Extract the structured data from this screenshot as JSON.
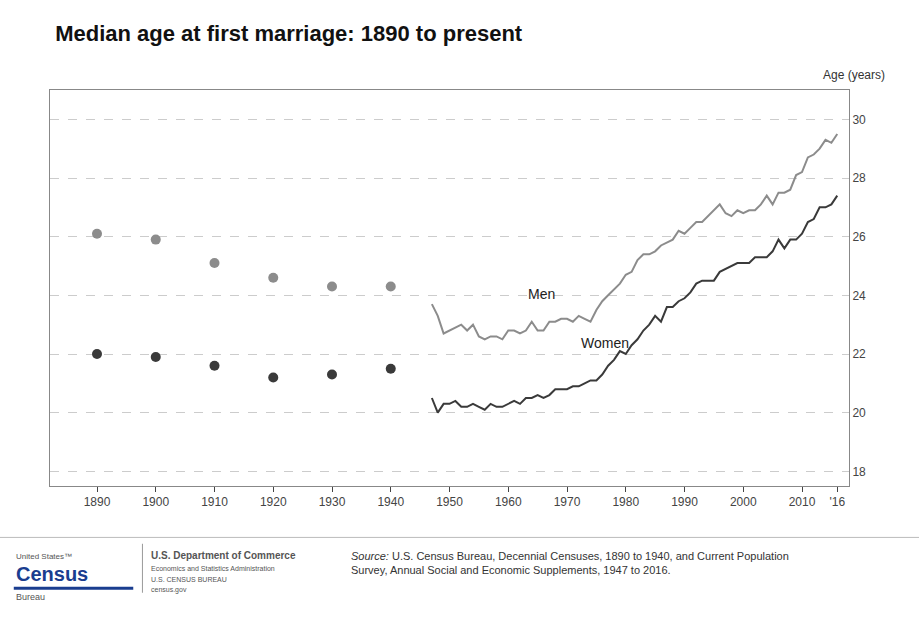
{
  "chart_data": {
    "type": "line",
    "title": "Median age at first marriage: 1890 to present",
    "ylabel": "Age (years)",
    "series": [
      {
        "name": "Men",
        "type": "scatter",
        "color": "#8c8c8c",
        "x": [
          1890,
          1900,
          1910,
          1920,
          1930,
          1940
        ],
        "values": [
          26.1,
          25.9,
          25.1,
          24.6,
          24.3,
          24.3
        ]
      },
      {
        "name": "Women",
        "type": "scatter",
        "color": "#3a3a3a",
        "x": [
          1890,
          1900,
          1910,
          1920,
          1930,
          1940
        ],
        "values": [
          22.0,
          21.9,
          21.6,
          21.2,
          21.3,
          21.5
        ]
      },
      {
        "name": "Men",
        "type": "line",
        "color": "#8c8c8c",
        "x": [
          1947,
          1948,
          1949,
          1950,
          1951,
          1952,
          1953,
          1954,
          1955,
          1956,
          1957,
          1958,
          1959,
          1960,
          1961,
          1962,
          1963,
          1964,
          1965,
          1966,
          1967,
          1968,
          1969,
          1970,
          1971,
          1972,
          1973,
          1974,
          1975,
          1976,
          1977,
          1978,
          1979,
          1980,
          1981,
          1982,
          1983,
          1984,
          1985,
          1986,
          1987,
          1988,
          1989,
          1990,
          1991,
          1992,
          1993,
          1994,
          1995,
          1996,
          1997,
          1998,
          1999,
          2000,
          2001,
          2002,
          2003,
          2004,
          2005,
          2006,
          2007,
          2008,
          2009,
          2010,
          2011,
          2012,
          2013,
          2014,
          2015,
          2016
        ],
        "values": [
          23.7,
          23.3,
          22.7,
          22.8,
          22.9,
          23.0,
          22.8,
          23.0,
          22.6,
          22.5,
          22.6,
          22.6,
          22.5,
          22.8,
          22.8,
          22.7,
          22.8,
          23.1,
          22.8,
          22.8,
          23.1,
          23.1,
          23.2,
          23.2,
          23.1,
          23.3,
          23.2,
          23.1,
          23.5,
          23.8,
          24.0,
          24.2,
          24.4,
          24.7,
          24.8,
          25.2,
          25.4,
          25.4,
          25.5,
          25.7,
          25.8,
          25.9,
          26.2,
          26.1,
          26.3,
          26.5,
          26.5,
          26.7,
          26.9,
          27.1,
          26.8,
          26.7,
          26.9,
          26.8,
          26.9,
          26.9,
          27.1,
          27.4,
          27.1,
          27.5,
          27.5,
          27.6,
          28.1,
          28.2,
          28.7,
          28.8,
          29.0,
          29.3,
          29.2,
          29.5
        ]
      },
      {
        "name": "Women",
        "type": "line",
        "color": "#3a3a3a",
        "x": [
          1947,
          1948,
          1949,
          1950,
          1951,
          1952,
          1953,
          1954,
          1955,
          1956,
          1957,
          1958,
          1959,
          1960,
          1961,
          1962,
          1963,
          1964,
          1965,
          1966,
          1967,
          1968,
          1969,
          1970,
          1971,
          1972,
          1973,
          1974,
          1975,
          1976,
          1977,
          1978,
          1979,
          1980,
          1981,
          1982,
          1983,
          1984,
          1985,
          1986,
          1987,
          1988,
          1989,
          1990,
          1991,
          1992,
          1993,
          1994,
          1995,
          1996,
          1997,
          1998,
          1999,
          2000,
          2001,
          2002,
          2003,
          2004,
          2005,
          2006,
          2007,
          2008,
          2009,
          2010,
          2011,
          2012,
          2013,
          2014,
          2015,
          2016
        ],
        "values": [
          20.5,
          20.0,
          20.3,
          20.3,
          20.4,
          20.2,
          20.2,
          20.3,
          20.2,
          20.1,
          20.3,
          20.2,
          20.2,
          20.3,
          20.4,
          20.3,
          20.5,
          20.5,
          20.6,
          20.5,
          20.6,
          20.8,
          20.8,
          20.8,
          20.9,
          20.9,
          21.0,
          21.1,
          21.1,
          21.3,
          21.6,
          21.8,
          22.1,
          22.0,
          22.3,
          22.5,
          22.8,
          23.0,
          23.3,
          23.1,
          23.6,
          23.6,
          23.8,
          23.9,
          24.1,
          24.4,
          24.5,
          24.5,
          24.5,
          24.8,
          24.9,
          25.0,
          25.1,
          25.1,
          25.1,
          25.3,
          25.3,
          25.3,
          25.5,
          25.9,
          25.6,
          25.9,
          25.9,
          26.1,
          26.5,
          26.6,
          27.0,
          27.0,
          27.1,
          27.4
        ]
      }
    ],
    "annotations": [
      {
        "text": "Men",
        "x": 1963,
        "y": 23.7
      },
      {
        "text": "Women",
        "x": 1972,
        "y": 22.05
      },
      {
        "text": "United States™"
      },
      {
        "text": "Census",
        "color": "#1a3d8f"
      },
      {
        "text": "Bureau"
      },
      {
        "text": "U.S. Department of Commerce"
      },
      {
        "text": "Economics and Statistics Administration"
      },
      {
        "text": "U.S. CENSUS BUREAU"
      },
      {
        "text": "census.gov"
      },
      {
        "text": "Source:"
      },
      {
        "text": " U.S. Census Bureau, Decennial Censuses, 1890 to 1940, and Current Population\nSurvey, Annual Social and Economic Supplements, 1947 to 2016."
      }
    ],
    "xlim": [
      1882,
      2018
    ],
    "xticks": [
      1890,
      1900,
      1910,
      1920,
      1930,
      1940,
      1950,
      1960,
      1970,
      1980,
      1990,
      2000,
      2010,
      {
        "value": 2016,
        "label": "'16"
      }
    ],
    "ylim": [
      17.5,
      31.0
    ],
    "yticks": [
      18,
      20,
      22,
      24,
      26,
      28,
      30
    ],
    "grid": true
  }
}
